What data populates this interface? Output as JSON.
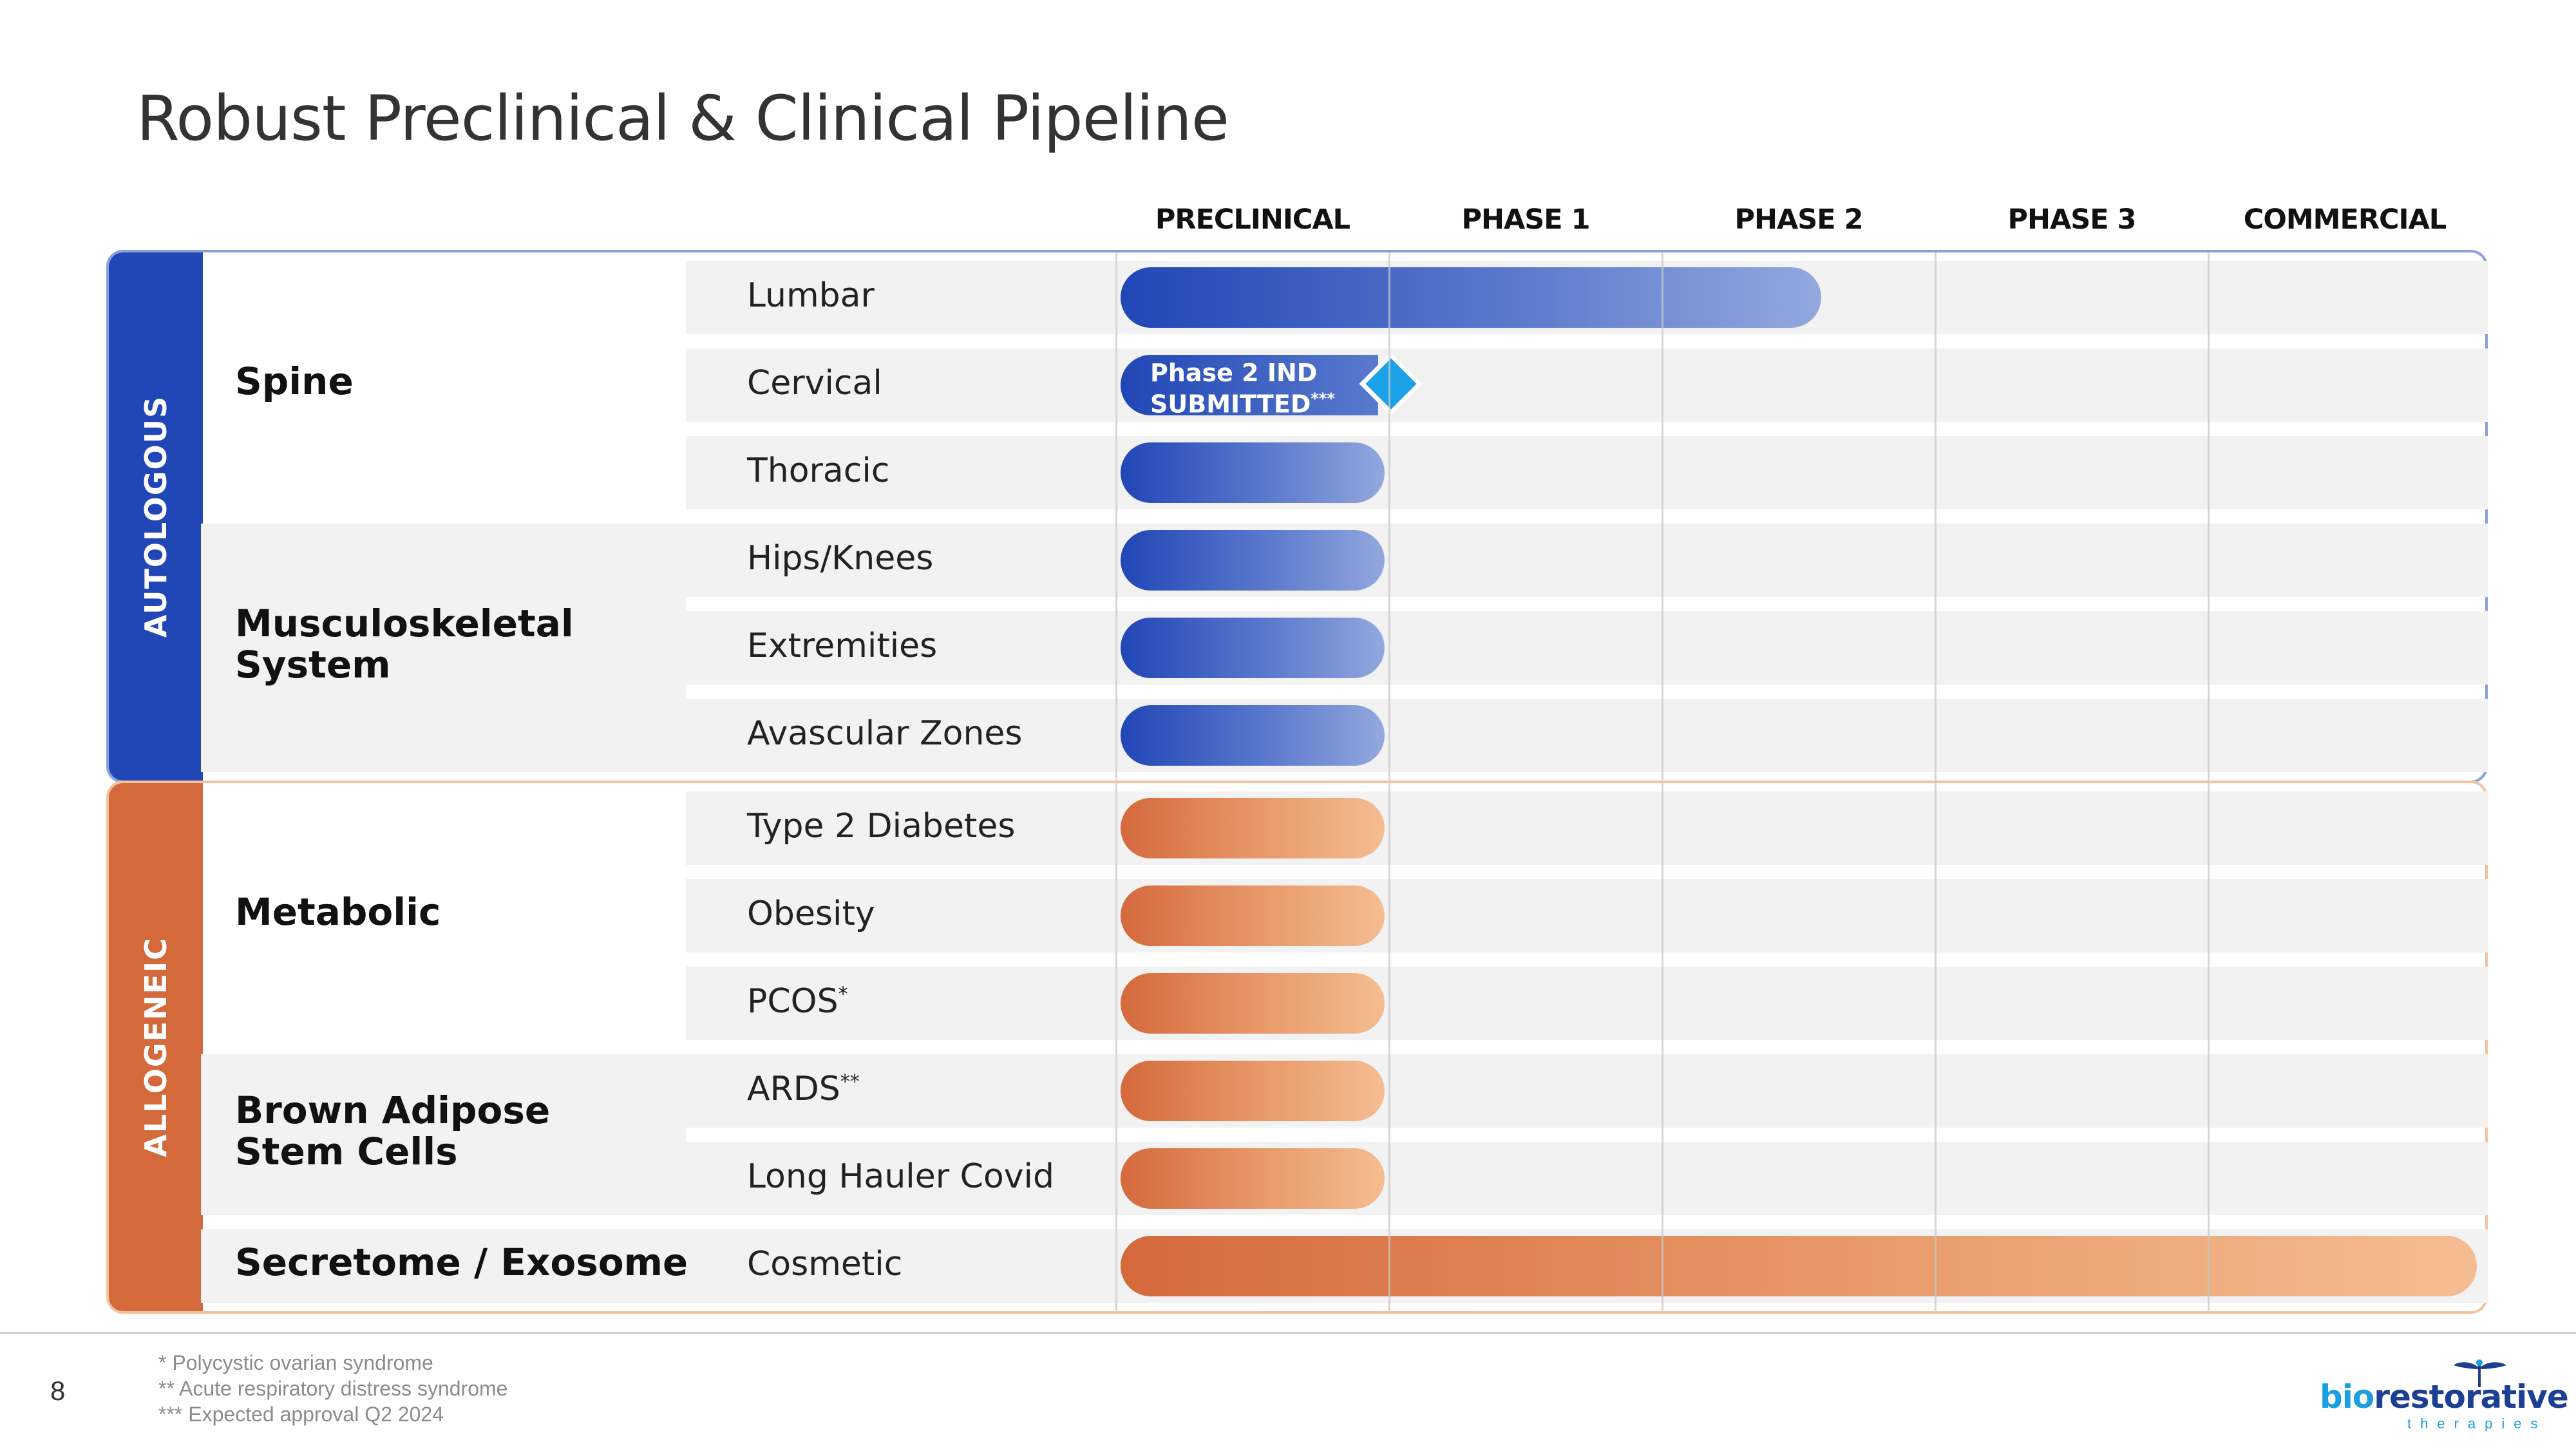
{
  "title": "Robust Preclinical & Clinical Pipeline",
  "page_number": "8",
  "chart_data": {
    "type": "bar",
    "orientation": "horizontal",
    "title": "Robust Preclinical & Clinical Pipeline",
    "phases": [
      "PRECLINICAL",
      "PHASE 1",
      "PHASE 2",
      "PHASE 3",
      "COMMERCIAL"
    ],
    "groups": [
      {
        "label": "AUTOLOGOUS",
        "color": "#2146b6",
        "categories": [
          {
            "label": "Spine",
            "programs": [
              {
                "name": "Lumbar",
                "progress": 2.6
              },
              {
                "name": "Cervical",
                "progress": 1.0,
                "badge": "Phase 2 IND SUBMITTED",
                "badge_lines": [
                  "Phase 2 IND",
                  "SUBMITTED"
                ],
                "badge_mark": "***"
              },
              {
                "name": "Thoracic",
                "progress": 1.0
              }
            ]
          },
          {
            "label": "Musculoskeletal System",
            "label_lines": [
              "Musculoskeletal",
              "System"
            ],
            "programs": [
              {
                "name": "Hips/Knees",
                "progress": 1.0
              },
              {
                "name": "Extremities",
                "progress": 1.0
              },
              {
                "name": "Avascular Zones",
                "progress": 1.0
              }
            ]
          }
        ]
      },
      {
        "label": "ALLOGENEIC",
        "color": "#d4693c",
        "categories": [
          {
            "label": "Metabolic",
            "programs": [
              {
                "name": "Type 2 Diabetes",
                "progress": 1.0
              },
              {
                "name": "Obesity",
                "progress": 1.0
              },
              {
                "name": "PCOS",
                "mark": "*",
                "progress": 1.0
              }
            ]
          },
          {
            "label": "Brown Adipose Stem Cells",
            "label_lines": [
              "Brown Adipose",
              "Stem Cells"
            ],
            "programs": [
              {
                "name": "ARDS",
                "mark": "**",
                "progress": 1.0
              },
              {
                "name": "Long Hauler Covid",
                "progress": 1.0
              }
            ]
          },
          {
            "label": "Secretome / Exosome",
            "programs": [
              {
                "name": "Cosmetic",
                "progress": 5.0
              }
            ]
          }
        ]
      }
    ]
  },
  "footnotes": [
    "* Polycystic ovarian syndrome",
    "** Acute respiratory distress syndrome",
    "*** Expected approval Q2 2024"
  ],
  "logo": {
    "word_bio": "bio",
    "word_rest": "restorative",
    "subtitle": "therapies",
    "icon": "dragonfly-icon"
  }
}
